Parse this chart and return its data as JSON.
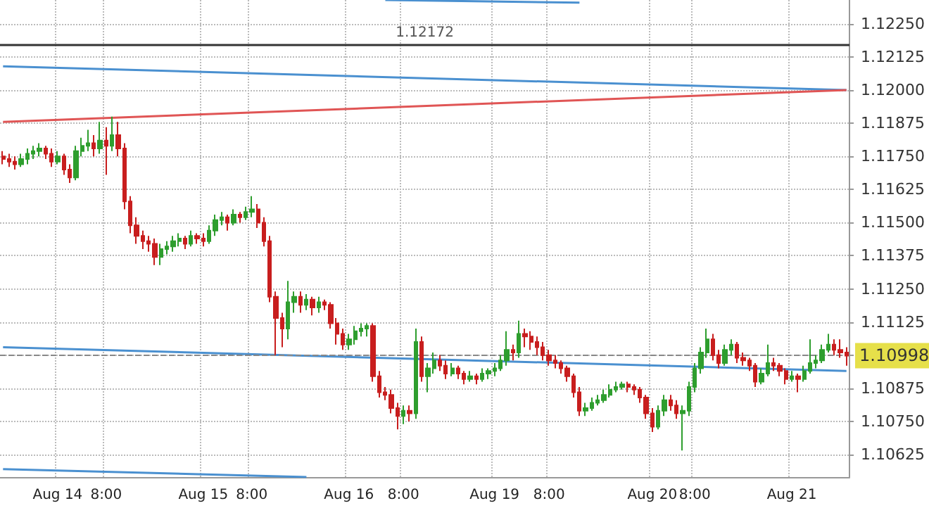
{
  "chart_data": {
    "type": "candlestick",
    "categories": [
      null,
      null,
      null,
      null,
      null,
      null,
      null,
      null,
      null,
      "Aug 14",
      null,
      null,
      null,
      null,
      null,
      null,
      null,
      "8:00",
      null,
      null,
      null,
      null,
      null,
      null,
      null,
      null,
      null,
      null,
      null,
      null,
      null,
      null,
      null,
      "Aug 15",
      null,
      null,
      null,
      null,
      null,
      null,
      null,
      "8:00",
      null,
      null,
      null,
      null,
      null,
      null,
      null,
      null,
      null,
      null,
      null,
      null,
      null,
      null,
      null,
      "Aug 16",
      null,
      null,
      null,
      null,
      null,
      null,
      null,
      null,
      "8:00",
      null,
      null,
      null,
      null,
      null,
      null,
      null,
      null,
      null,
      null,
      null,
      null,
      null,
      null,
      "Aug 19",
      null,
      null,
      null,
      null,
      null,
      null,
      null,
      null,
      "8:00",
      null,
      null,
      null,
      null,
      null,
      null,
      null,
      null,
      null,
      null,
      null,
      null,
      null,
      null,
      null,
      null,
      "Aug 20",
      null,
      null,
      null,
      null,
      null,
      null,
      "8:00",
      null,
      null,
      null,
      null,
      null,
      null,
      null,
      null,
      null,
      null,
      null,
      null,
      null,
      null,
      null,
      "Aug 21",
      null,
      null,
      null,
      null,
      null,
      null,
      null,
      null,
      null
    ],
    "ohlc": [
      [
        1.1175,
        1.1177,
        1.1172,
        1.1174
      ],
      [
        1.1174,
        1.1176,
        1.1171,
        1.1173
      ],
      [
        1.1173,
        1.1175,
        1.117,
        1.1172
      ],
      [
        1.1172,
        1.1176,
        1.1171,
        1.1174
      ],
      [
        1.1174,
        1.1178,
        1.1172,
        1.1176
      ],
      [
        1.1176,
        1.1179,
        1.1174,
        1.1177
      ],
      [
        1.1177,
        1.118,
        1.1175,
        1.1178
      ],
      [
        1.1178,
        1.1179,
        1.1174,
        1.1176
      ],
      [
        1.1176,
        1.1178,
        1.1171,
        1.1173
      ],
      [
        1.1173,
        1.1177,
        1.1172,
        1.1175
      ],
      [
        1.1175,
        1.1176,
        1.1168,
        1.117
      ],
      [
        1.117,
        1.1172,
        1.1165,
        1.1167
      ],
      [
        1.1167,
        1.1179,
        1.1166,
        1.1177
      ],
      [
        1.1177,
        1.1182,
        1.1175,
        1.1179
      ],
      [
        1.1179,
        1.1185,
        1.1177,
        1.118
      ],
      [
        1.118,
        1.1183,
        1.1175,
        1.1178
      ],
      [
        1.1178,
        1.1188,
        1.1176,
        1.1181
      ],
      [
        1.1181,
        1.1186,
        1.1168,
        1.1179
      ],
      [
        1.1179,
        1.119,
        1.1177,
        1.1183
      ],
      [
        1.1183,
        1.1188,
        1.1175,
        1.1178
      ],
      [
        1.1178,
        1.118,
        1.1155,
        1.1158
      ],
      [
        1.1158,
        1.116,
        1.1146,
        1.1149
      ],
      [
        1.1149,
        1.1152,
        1.1142,
        1.1145
      ],
      [
        1.1145,
        1.1147,
        1.114,
        1.1143
      ],
      [
        1.1143,
        1.1145,
        1.1139,
        1.1142
      ],
      [
        1.1142,
        1.1144,
        1.1134,
        1.1137
      ],
      [
        1.1137,
        1.1142,
        1.1134,
        1.114
      ],
      [
        1.114,
        1.1143,
        1.1138,
        1.1141
      ],
      [
        1.1141,
        1.1145,
        1.1139,
        1.1143
      ],
      [
        1.1143,
        1.1146,
        1.1141,
        1.1144
      ],
      [
        1.1144,
        1.1145,
        1.114,
        1.1142
      ],
      [
        1.1142,
        1.1147,
        1.1141,
        1.1145
      ],
      [
        1.1145,
        1.1146,
        1.1142,
        1.1144
      ],
      [
        1.1144,
        1.1146,
        1.1141,
        1.1143
      ],
      [
        1.1143,
        1.1149,
        1.1142,
        1.1147
      ],
      [
        1.1147,
        1.1153,
        1.1145,
        1.1151
      ],
      [
        1.1151,
        1.1154,
        1.1149,
        1.1152
      ],
      [
        1.1152,
        1.1153,
        1.1147,
        1.115
      ],
      [
        1.115,
        1.1155,
        1.1149,
        1.1153
      ],
      [
        1.1153,
        1.1154,
        1.115,
        1.1152
      ],
      [
        1.1152,
        1.1156,
        1.1151,
        1.1154
      ],
      [
        1.1154,
        1.116,
        1.1152,
        1.1155
      ],
      [
        1.1155,
        1.1157,
        1.1148,
        1.115
      ],
      [
        1.115,
        1.1152,
        1.1141,
        1.1143
      ],
      [
        1.1143,
        1.1145,
        1.112,
        1.1122
      ],
      [
        1.1122,
        1.1124,
        1.11,
        1.1114
      ],
      [
        1.1114,
        1.1116,
        1.1103,
        1.111
      ],
      [
        1.111,
        1.1128,
        1.1106,
        1.112
      ],
      [
        1.112,
        1.1124,
        1.1116,
        1.1122
      ],
      [
        1.1122,
        1.1124,
        1.1116,
        1.1119
      ],
      [
        1.1119,
        1.1123,
        1.1117,
        1.1121
      ],
      [
        1.1121,
        1.1122,
        1.1115,
        1.1118
      ],
      [
        1.1118,
        1.1122,
        1.1116,
        1.112
      ],
      [
        1.112,
        1.1121,
        1.1117,
        1.1119
      ],
      [
        1.1119,
        1.112,
        1.111,
        1.1112
      ],
      [
        1.1112,
        1.1114,
        1.1104,
        1.1108
      ],
      [
        1.1108,
        1.111,
        1.1102,
        1.1104
      ],
      [
        1.1104,
        1.1108,
        1.1102,
        1.1106
      ],
      [
        1.1106,
        1.1111,
        1.1104,
        1.1109
      ],
      [
        1.1109,
        1.1112,
        1.1107,
        1.111
      ],
      [
        1.111,
        1.1112,
        1.1107,
        1.1111
      ],
      [
        1.1111,
        1.1112,
        1.109,
        1.1092
      ],
      [
        1.1092,
        1.1094,
        1.1084,
        1.1086
      ],
      [
        1.1086,
        1.1088,
        1.1083,
        1.1085
      ],
      [
        1.1085,
        1.1087,
        1.1078,
        1.108
      ],
      [
        1.108,
        1.1082,
        1.1072,
        1.1077
      ],
      [
        1.1077,
        1.1081,
        1.1074,
        1.1079
      ],
      [
        1.1079,
        1.1081,
        1.1075,
        1.1078
      ],
      [
        1.1078,
        1.111,
        1.1076,
        1.1105
      ],
      [
        1.1105,
        1.1107,
        1.109,
        1.1092
      ],
      [
        1.1092,
        1.1097,
        1.1086,
        1.1095
      ],
      [
        1.1095,
        1.1101,
        1.1093,
        1.1098
      ],
      [
        1.1098,
        1.11,
        1.1094,
        1.1096
      ],
      [
        1.1096,
        1.1098,
        1.1091,
        1.1093
      ],
      [
        1.1093,
        1.1097,
        1.1092,
        1.1095
      ],
      [
        1.1095,
        1.1096,
        1.1091,
        1.1093
      ],
      [
        1.1093,
        1.1094,
        1.1089,
        1.1091
      ],
      [
        1.1091,
        1.1094,
        1.109,
        1.1092
      ],
      [
        1.1092,
        1.1093,
        1.1089,
        1.1091
      ],
      [
        1.1091,
        1.1095,
        1.109,
        1.1093
      ],
      [
        1.1093,
        1.1095,
        1.1091,
        1.1094
      ],
      [
        1.1094,
        1.1097,
        1.1092,
        1.1095
      ],
      [
        1.1095,
        1.11,
        1.1094,
        1.1098
      ],
      [
        1.1098,
        1.1109,
        1.1096,
        1.1102
      ],
      [
        1.1102,
        1.1104,
        1.1098,
        1.1101
      ],
      [
        1.1101,
        1.1113,
        1.1099,
        1.1108
      ],
      [
        1.1108,
        1.111,
        1.1103,
        1.1107
      ],
      [
        1.1107,
        1.1109,
        1.1102,
        1.1105
      ],
      [
        1.1105,
        1.1107,
        1.11,
        1.1103
      ],
      [
        1.1103,
        1.1105,
        1.1098,
        1.11
      ],
      [
        1.11,
        1.1102,
        1.1096,
        1.1098
      ],
      [
        1.1098,
        1.11,
        1.1095,
        1.1097
      ],
      [
        1.1097,
        1.1098,
        1.1093,
        1.1095
      ],
      [
        1.1095,
        1.1096,
        1.109,
        1.1092
      ],
      [
        1.1092,
        1.1093,
        1.1084,
        1.1086
      ],
      [
        1.1086,
        1.1088,
        1.1077,
        1.1079
      ],
      [
        1.1079,
        1.1082,
        1.1077,
        1.108
      ],
      [
        1.108,
        1.1084,
        1.1079,
        1.1082
      ],
      [
        1.1082,
        1.1085,
        1.1081,
        1.1083
      ],
      [
        1.1083,
        1.1087,
        1.1082,
        1.1085
      ],
      [
        1.1085,
        1.1089,
        1.1084,
        1.1087
      ],
      [
        1.1087,
        1.109,
        1.1086,
        1.1088
      ],
      [
        1.1088,
        1.109,
        1.1087,
        1.1089
      ],
      [
        1.1089,
        1.109,
        1.1086,
        1.1088
      ],
      [
        1.1088,
        1.1089,
        1.1085,
        1.1087
      ],
      [
        1.1087,
        1.1088,
        1.1082,
        1.1084
      ],
      [
        1.1084,
        1.1085,
        1.1076,
        1.1078
      ],
      [
        1.1078,
        1.108,
        1.1071,
        1.1073
      ],
      [
        1.1073,
        1.1081,
        1.1072,
        1.1079
      ],
      [
        1.1079,
        1.1085,
        1.1077,
        1.1083
      ],
      [
        1.1083,
        1.1085,
        1.1079,
        1.1081
      ],
      [
        1.1081,
        1.1083,
        1.1076,
        1.1078
      ],
      [
        1.1078,
        1.1081,
        1.1064,
        1.1079
      ],
      [
        1.1079,
        1.109,
        1.1077,
        1.1088
      ],
      [
        1.1088,
        1.1097,
        1.1086,
        1.1095
      ],
      [
        1.1095,
        1.1103,
        1.1093,
        1.1101
      ],
      [
        1.1101,
        1.111,
        1.1099,
        1.1106
      ],
      [
        1.1106,
        1.1108,
        1.1098,
        1.11
      ],
      [
        1.11,
        1.1102,
        1.1095,
        1.1097
      ],
      [
        1.1097,
        1.1104,
        1.1096,
        1.1102
      ],
      [
        1.1102,
        1.1106,
        1.11,
        1.1104
      ],
      [
        1.1104,
        1.1105,
        1.1097,
        1.1099
      ],
      [
        1.1099,
        1.1101,
        1.1096,
        1.1098
      ],
      [
        1.1098,
        1.1099,
        1.1094,
        1.1096
      ],
      [
        1.1096,
        1.1097,
        1.1088,
        1.109
      ],
      [
        1.109,
        1.1095,
        1.1089,
        1.1093
      ],
      [
        1.1093,
        1.1104,
        1.1092,
        1.1097
      ],
      [
        1.1097,
        1.1099,
        1.1094,
        1.1096
      ],
      [
        1.1096,
        1.1097,
        1.1092,
        1.1094
      ],
      [
        1.1094,
        1.1095,
        1.1089,
        1.1091
      ],
      [
        1.1091,
        1.1094,
        1.109,
        1.1092
      ],
      [
        1.1092,
        1.1093,
        1.1086,
        1.1091
      ],
      [
        1.1091,
        1.1096,
        1.109,
        1.1094
      ],
      [
        1.1094,
        1.1106,
        1.1093,
        1.1097
      ],
      [
        1.1097,
        1.11,
        1.1095,
        1.1098
      ],
      [
        1.1098,
        1.1104,
        1.1097,
        1.1102
      ],
      [
        1.1102,
        1.1108,
        1.1101,
        1.1104
      ],
      [
        1.1104,
        1.1106,
        1.11,
        1.1102
      ],
      [
        1.1102,
        1.1106,
        1.1099,
        1.1101
      ],
      [
        1.1101,
        1.1103,
        1.1096,
        1.10998
      ]
    ],
    "colors": [
      "#c81e1e",
      "#c81e1e",
      "#c81e1e",
      "#2e9e2e",
      "#2e9e2e",
      "#2e9e2e",
      "#2e9e2e",
      "#c81e1e",
      "#c81e1e",
      "#2e9e2e",
      "#c81e1e",
      "#c81e1e",
      "#2e9e2e",
      "#2e9e2e",
      "#2e9e2e",
      "#c81e1e",
      "#2e9e2e",
      "#c81e1e",
      "#2e9e2e",
      "#c81e1e",
      "#c81e1e",
      "#c81e1e",
      "#c81e1e",
      "#c81e1e",
      "#c81e1e",
      "#c81e1e",
      "#2e9e2e",
      "#2e9e2e",
      "#2e9e2e",
      "#2e9e2e",
      "#c81e1e",
      "#2e9e2e",
      "#c81e1e",
      "#c81e1e",
      "#2e9e2e",
      "#2e9e2e",
      "#2e9e2e",
      "#c81e1e",
      "#2e9e2e",
      "#c81e1e",
      "#2e9e2e",
      "#2e9e2e",
      "#c81e1e",
      "#c81e1e",
      "#c81e1e",
      "#c81e1e",
      "#c81e1e",
      "#2e9e2e",
      "#2e9e2e",
      "#c81e1e",
      "#2e9e2e",
      "#c81e1e",
      "#2e9e2e",
      "#c81e1e",
      "#c81e1e",
      "#c81e1e",
      "#c81e1e",
      "#2e9e2e",
      "#2e9e2e",
      "#2e9e2e",
      "#2e9e2e",
      "#c81e1e",
      "#c81e1e",
      "#c81e1e",
      "#c81e1e",
      "#c81e1e",
      "#2e9e2e",
      "#c81e1e",
      "#2e9e2e",
      "#c81e1e",
      "#2e9e2e",
      "#2e9e2e",
      "#c81e1e",
      "#c81e1e",
      "#2e9e2e",
      "#c81e1e",
      "#c81e1e",
      "#2e9e2e",
      "#c81e1e",
      "#2e9e2e",
      "#2e9e2e",
      "#2e9e2e",
      "#2e9e2e",
      "#2e9e2e",
      "#c81e1e",
      "#2e9e2e",
      "#c81e1e",
      "#c81e1e",
      "#c81e1e",
      "#c81e1e",
      "#c81e1e",
      "#c81e1e",
      "#c81e1e",
      "#c81e1e",
      "#c81e1e",
      "#c81e1e",
      "#2e9e2e",
      "#2e9e2e",
      "#2e9e2e",
      "#2e9e2e",
      "#2e9e2e",
      "#2e9e2e",
      "#2e9e2e",
      "#c81e1e",
      "#c81e1e",
      "#c81e1e",
      "#c81e1e",
      "#c81e1e",
      "#2e9e2e",
      "#2e9e2e",
      "#c81e1e",
      "#c81e1e",
      "#2e9e2e",
      "#2e9e2e",
      "#2e9e2e",
      "#2e9e2e",
      "#2e9e2e",
      "#c81e1e",
      "#c81e1e",
      "#2e9e2e",
      "#2e9e2e",
      "#c81e1e",
      "#c81e1e",
      "#c81e1e",
      "#c81e1e",
      "#2e9e2e",
      "#2e9e2e",
      "#c81e1e",
      "#c81e1e",
      "#c81e1e",
      "#2e9e2e",
      "#c81e1e",
      "#2e9e2e",
      "#2e9e2e",
      "#2e9e2e",
      "#2e9e2e",
      "#2e9e2e",
      "#c81e1e",
      "#c81e1e",
      "#c81e1e"
    ],
    "series": [
      {
        "type": "line",
        "color": "#4a90d0",
        "values": [
          1.1209,
          null,
          null,
          null,
          null,
          null,
          null,
          null,
          null,
          null,
          null,
          null,
          null,
          null,
          null,
          null,
          null,
          null,
          null,
          null,
          null,
          null,
          null,
          null,
          null,
          null,
          null,
          null,
          null,
          null,
          null,
          null,
          null,
          null,
          null,
          null,
          null,
          null,
          null,
          null,
          null,
          null,
          null,
          null,
          null,
          null,
          null,
          null,
          null,
          null,
          null,
          null,
          null,
          null,
          null,
          null,
          null,
          null,
          null,
          null,
          null,
          null,
          null,
          null,
          null,
          null,
          null,
          null,
          null,
          null,
          null,
          null,
          null,
          null,
          null,
          null,
          null,
          null,
          null,
          null,
          null,
          null,
          null,
          null,
          null,
          null,
          null,
          null,
          null,
          null,
          null,
          null,
          null,
          null,
          null,
          null,
          null,
          null,
          null,
          null,
          null,
          null,
          null,
          null,
          null,
          null,
          null,
          null,
          null,
          null,
          null,
          null,
          null,
          null,
          null,
          null,
          null,
          null,
          null,
          null,
          null,
          null,
          null,
          null,
          null,
          null,
          null,
          null,
          null,
          null,
          null,
          null,
          null,
          null,
          null,
          null,
          null,
          null,
          null,
          1.12
        ]
      },
      {
        "type": "line",
        "color": "#e05555",
        "values": [
          1.1188,
          null,
          null,
          null,
          null,
          null,
          null,
          null,
          null,
          null,
          null,
          null,
          null,
          null,
          null,
          null,
          null,
          null,
          null,
          null,
          null,
          null,
          null,
          null,
          null,
          null,
          null,
          null,
          null,
          null,
          null,
          null,
          null,
          null,
          null,
          null,
          null,
          null,
          null,
          null,
          null,
          null,
          null,
          null,
          null,
          null,
          null,
          null,
          null,
          null,
          null,
          null,
          null,
          null,
          null,
          null,
          null,
          null,
          null,
          null,
          null,
          null,
          null,
          null,
          null,
          null,
          null,
          null,
          null,
          null,
          null,
          null,
          null,
          null,
          null,
          null,
          null,
          null,
          null,
          null,
          null,
          null,
          null,
          null,
          null,
          null,
          null,
          null,
          null,
          null,
          null,
          null,
          null,
          null,
          null,
          null,
          null,
          null,
          null,
          null,
          null,
          null,
          null,
          null,
          null,
          null,
          null,
          null,
          null,
          null,
          null,
          null,
          null,
          null,
          null,
          null,
          null,
          null,
          null,
          null,
          null,
          null,
          null,
          null,
          null,
          null,
          null,
          null,
          null,
          null,
          null,
          null,
          null,
          null,
          null,
          null,
          null,
          null,
          null,
          1.12
        ]
      },
      {
        "type": "line",
        "color": "#4a90d0",
        "values": [
          null,
          null,
          null,
          null,
          null,
          null,
          null,
          null,
          null,
          null,
          null,
          null,
          null,
          null,
          null,
          null,
          null,
          null,
          null,
          null,
          null,
          null,
          null,
          null,
          null,
          null,
          null,
          null,
          null,
          null,
          null,
          null,
          null,
          null,
          null,
          null,
          null,
          null,
          null,
          null,
          null,
          null,
          null,
          null,
          null,
          null,
          null,
          null,
          null,
          null,
          null,
          null,
          null,
          null,
          null,
          null,
          null,
          null,
          null,
          null,
          null,
          null,
          null,
          1.1234,
          null,
          null,
          null,
          null,
          null,
          null,
          null,
          null,
          null,
          null,
          null,
          null,
          null,
          null,
          null,
          null,
          null,
          null,
          null,
          null,
          null,
          null,
          null,
          null,
          null,
          null,
          null,
          null,
          null,
          null,
          null,
          1.1233,
          null,
          null,
          null,
          null,
          null,
          null,
          null,
          null,
          null,
          null,
          null,
          null,
          null,
          null,
          null,
          null,
          null,
          null,
          null,
          null,
          null,
          null,
          null,
          null,
          null,
          null,
          null,
          null,
          null,
          null,
          null,
          null,
          null,
          null,
          null,
          null,
          null,
          null,
          null,
          null,
          null,
          null,
          null,
          null
        ]
      },
      {
        "type": "line",
        "color": "#4a90d0",
        "values": [
          1.1103,
          null,
          null,
          null,
          null,
          null,
          null,
          null,
          null,
          null,
          null,
          null,
          null,
          null,
          null,
          null,
          null,
          null,
          null,
          null,
          null,
          null,
          null,
          null,
          null,
          null,
          null,
          null,
          null,
          null,
          null,
          null,
          null,
          null,
          null,
          null,
          null,
          null,
          null,
          null,
          null,
          null,
          null,
          null,
          null,
          null,
          null,
          null,
          null,
          null,
          null,
          null,
          null,
          null,
          null,
          null,
          null,
          null,
          null,
          null,
          null,
          null,
          null,
          null,
          null,
          null,
          null,
          null,
          null,
          null,
          null,
          null,
          null,
          null,
          null,
          null,
          null,
          null,
          null,
          null,
          null,
          null,
          null,
          null,
          null,
          null,
          null,
          null,
          null,
          null,
          null,
          null,
          null,
          null,
          null,
          null,
          null,
          null,
          null,
          null,
          null,
          null,
          null,
          null,
          null,
          null,
          null,
          null,
          null,
          null,
          null,
          null,
          null,
          null,
          null,
          null,
          null,
          null,
          null,
          null,
          null,
          null,
          null,
          null,
          null,
          null,
          null,
          null,
          null,
          null,
          null,
          null,
          null,
          null,
          null,
          null,
          null,
          null,
          null,
          1.1094
        ]
      },
      {
        "type": "line",
        "color": "#4a90d0",
        "values": [
          1.1057,
          null,
          null,
          null,
          null,
          null,
          null,
          null,
          null,
          null,
          null,
          null,
          null,
          null,
          null,
          null,
          null,
          null,
          null,
          null,
          null,
          null,
          null,
          null,
          null,
          null,
          null,
          null,
          null,
          null,
          null,
          null,
          null,
          null,
          null,
          null,
          null,
          null,
          null,
          null,
          null,
          null,
          null,
          null,
          null,
          null,
          null,
          null,
          null,
          null,
          1.1054,
          null,
          null,
          null,
          null,
          null,
          null,
          null,
          null,
          null,
          null,
          null,
          null,
          null,
          null,
          null,
          null,
          null,
          null,
          null,
          null,
          null,
          null,
          null,
          null,
          null,
          null,
          null,
          null,
          null,
          null,
          null,
          null,
          null,
          null,
          null,
          null,
          null,
          null,
          null,
          null,
          null,
          null,
          null,
          null,
          null,
          null,
          null,
          null,
          null,
          null,
          null,
          null,
          null,
          null,
          null,
          null,
          null,
          null,
          null,
          null,
          null,
          null,
          null,
          null,
          null,
          null,
          null,
          null,
          null,
          null,
          null,
          null,
          null,
          null,
          null,
          null,
          null,
          null,
          null,
          null,
          null,
          null,
          null,
          null,
          null,
          null,
          null,
          null,
          null
        ]
      }
    ],
    "ylim": [
      1.1054,
      1.1234
    ],
    "yticks": [
      1.10625,
      {
        "value": 1.1075,
        "label": "1.10750"
      },
      1.10875,
      {
        "value": 1.11,
        "label": null
      },
      1.11125,
      {
        "value": 1.1125,
        "label": "1.11250"
      },
      1.11375,
      {
        "value": 1.115,
        "label": "1.11500"
      },
      1.11625,
      {
        "value": 1.1175,
        "label": "1.11750"
      },
      1.11875,
      {
        "value": 1.12,
        "label": "1.12000"
      },
      1.12125,
      {
        "value": 1.1225,
        "label": "1.12250"
      }
    ],
    "ref_lines": [
      {
        "axis": "y",
        "value": 1.12172,
        "label": "1.12172",
        "color": "#333333",
        "line_style": "solid"
      },
      {
        "axis": "y",
        "value": 1.10998,
        "label": "1.10998",
        "color": "#888888",
        "line_style": "dashed"
      }
    ],
    "grid": true
  }
}
